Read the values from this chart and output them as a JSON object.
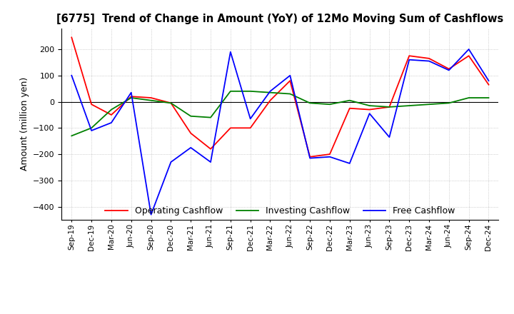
{
  "title": "[6775]  Trend of Change in Amount (YoY) of 12Mo Moving Sum of Cashflows",
  "ylabel": "Amount (million yen)",
  "ylim": [
    -450,
    280
  ],
  "yticks": [
    -400,
    -300,
    -200,
    -100,
    0,
    100,
    200
  ],
  "x_labels": [
    "Sep-19",
    "Dec-19",
    "Mar-20",
    "Jun-20",
    "Sep-20",
    "Dec-20",
    "Mar-21",
    "Jun-21",
    "Sep-21",
    "Dec-21",
    "Mar-22",
    "Jun-22",
    "Sep-22",
    "Dec-22",
    "Mar-23",
    "Jun-23",
    "Sep-23",
    "Dec-23",
    "Mar-24",
    "Jun-24",
    "Sep-24",
    "Dec-24"
  ],
  "operating": [
    245,
    -10,
    -50,
    20,
    15,
    -5,
    -120,
    -180,
    -100,
    -100,
    5,
    80,
    -210,
    -200,
    -25,
    -30,
    -20,
    175,
    165,
    125,
    175,
    65
  ],
  "investing": [
    -130,
    -100,
    -30,
    15,
    5,
    -5,
    -55,
    -60,
    40,
    40,
    35,
    30,
    -5,
    -10,
    5,
    -15,
    -20,
    -15,
    -10,
    -5,
    15,
    15
  ],
  "free": [
    100,
    -110,
    -80,
    35,
    -430,
    -230,
    -175,
    -230,
    190,
    -65,
    40,
    100,
    -215,
    -210,
    -235,
    -45,
    -135,
    160,
    155,
    120,
    200,
    80
  ],
  "op_color": "#ff0000",
  "inv_color": "#008000",
  "free_color": "#0000ff",
  "bg_color": "#ffffff",
  "grid_color": "#b0b0b0",
  "legend_labels": [
    "Operating Cashflow",
    "Investing Cashflow",
    "Free Cashflow"
  ]
}
